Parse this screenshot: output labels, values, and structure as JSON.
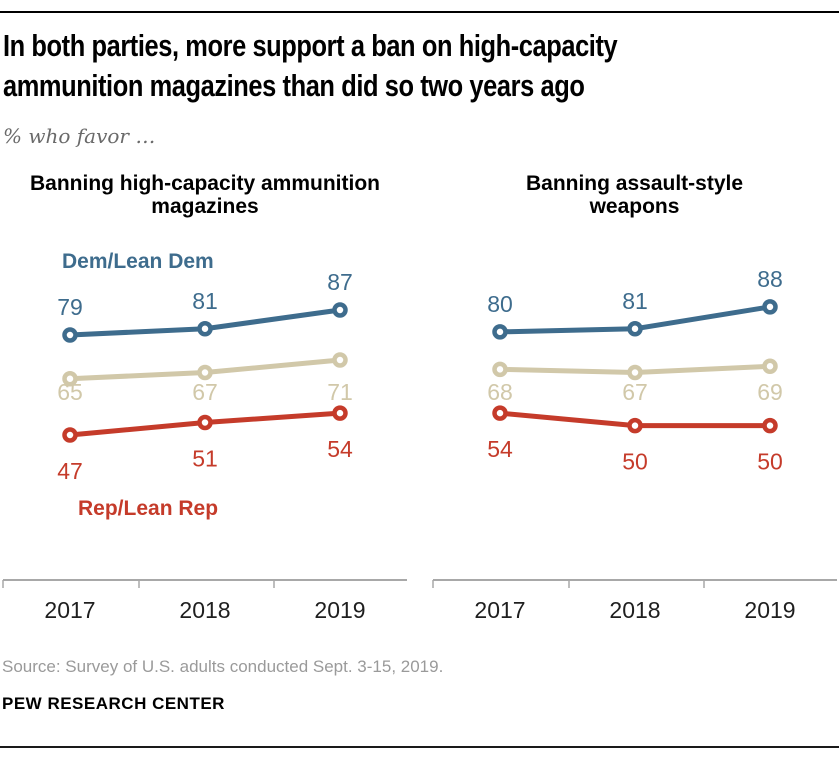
{
  "page": {
    "title_lines": [
      "In both parties, more support a ban on high-capacity",
      "ammunition magazines than did so two years ago"
    ],
    "subtitle": "% who favor …",
    "source": "Source: Survey of U.S. adults conducted Sept. 3-15, 2019.",
    "brand": "PEW RESEARCH CENTER"
  },
  "style": {
    "dem_color": "#3e6c8d",
    "total_color": "#d1c8a9",
    "rep_color": "#c53b2a",
    "axis_color": "#a8a8a8",
    "year_label_color": "#1f1f1f",
    "subtitle_color": "#6a6a6a",
    "source_color": "#9a9a9a"
  },
  "chart_data": [
    {
      "type": "line",
      "title": "Banning high-capacity ammunition magazines",
      "categories": [
        "2017",
        "2018",
        "2019"
      ],
      "ylim": [
        40,
        95
      ],
      "grid": false,
      "legend_position": "inline-left-chart",
      "show_series_labels": true,
      "series": [
        {
          "key": "dem",
          "name": "Dem/Lean Dem",
          "color": "#3e6c8d",
          "values": [
            79,
            81,
            87
          ]
        },
        {
          "key": "total",
          "name": "",
          "color": "#d1c8a9",
          "values": [
            65,
            67,
            71
          ]
        },
        {
          "key": "rep",
          "name": "Rep/Lean Rep",
          "color": "#c53b2a",
          "values": [
            47,
            51,
            54
          ]
        }
      ]
    },
    {
      "type": "line",
      "title": "Banning assault-style weapons",
      "categories": [
        "2017",
        "2018",
        "2019"
      ],
      "ylim": [
        40,
        95
      ],
      "grid": false,
      "legend_position": "none",
      "show_series_labels": false,
      "series": [
        {
          "key": "dem",
          "name": "Dem/Lean Dem",
          "color": "#3e6c8d",
          "values": [
            80,
            81,
            88
          ]
        },
        {
          "key": "total",
          "name": "",
          "color": "#d1c8a9",
          "values": [
            68,
            67,
            69
          ]
        },
        {
          "key": "rep",
          "name": "Rep/Lean Rep",
          "color": "#c53b2a",
          "values": [
            54,
            50,
            50
          ]
        }
      ]
    }
  ]
}
